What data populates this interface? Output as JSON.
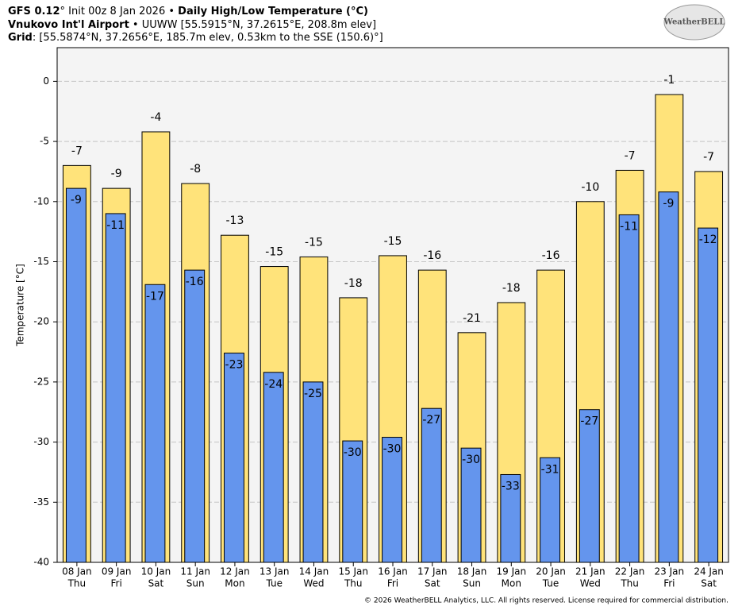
{
  "chart_data": {
    "type": "bar",
    "title_lines": [
      [
        {
          "text": "GFS 0.12",
          "bold": true
        },
        {
          "text": "° Init 00z 8 Jan 2026 • "
        },
        {
          "text": "Daily High/Low Temperature (°C)",
          "bold": true
        }
      ],
      [
        {
          "text": "Vnukovo Int'l Airport",
          "bold": true
        },
        {
          "text": " • UUWW [55.5915°N, 37.2615°E, 208.8m elev]"
        }
      ],
      [
        {
          "text": "Grid",
          "bold": true
        },
        {
          "text": ": [55.5874°N, 37.2656°E, 185.7m elev, 0.53km to the SSE (150.6)°]"
        }
      ]
    ],
    "logo": "WeatherBELL",
    "ylabel": "Temperature [°C]",
    "footer": "© 2026 WeatherBELL Analytics, LLC. All rights reserved. License required for commercial distribution.",
    "categories": [
      "08 Jan",
      "09 Jan",
      "10 Jan",
      "11 Jan",
      "12 Jan",
      "13 Jan",
      "14 Jan",
      "15 Jan",
      "16 Jan",
      "17 Jan",
      "18 Jan",
      "19 Jan",
      "20 Jan",
      "21 Jan",
      "22 Jan",
      "23 Jan",
      "24 Jan"
    ],
    "weekdays": [
      "Thu",
      "Fri",
      "Sat",
      "Sun",
      "Mon",
      "Tue",
      "Wed",
      "Thu",
      "Fri",
      "Sat",
      "Sun",
      "Mon",
      "Tue",
      "Wed",
      "Thu",
      "Fri",
      "Sat"
    ],
    "series": [
      {
        "name": "High",
        "color": "#ffe37a",
        "values": [
          -7.0,
          -8.9,
          -4.2,
          -8.5,
          -12.8,
          -15.4,
          -14.6,
          -18.0,
          -14.5,
          -15.7,
          -20.9,
          -18.4,
          -15.7,
          -10.0,
          -7.4,
          -1.1,
          -7.5
        ],
        "value_labels": [
          "-7",
          "-9",
          "-4",
          "-8",
          "-13",
          "-15",
          "-15",
          "-18",
          "-15",
          "-16",
          "-21",
          "-18",
          "-16",
          "-10",
          "-7",
          "-1",
          "-7"
        ]
      },
      {
        "name": "Low",
        "color": "#6495ed",
        "values": [
          -8.9,
          -11.0,
          -16.9,
          -15.7,
          -22.6,
          -24.2,
          -25.0,
          -29.9,
          -29.6,
          -27.2,
          -30.5,
          -32.7,
          -31.3,
          -27.3,
          -11.1,
          -9.2,
          -12.2
        ],
        "value_labels": [
          "-9",
          "-11",
          "-17",
          "-16",
          "-23",
          "-24",
          "-25",
          "-30",
          "-30",
          "-27",
          "-30",
          "-33",
          "-31",
          "-27",
          "-11",
          "-9",
          "-12"
        ]
      }
    ],
    "ylim": [
      -40,
      2.8
    ],
    "yticks": [
      0,
      -5,
      -10,
      -15,
      -20,
      -25,
      -30,
      -35,
      -40
    ],
    "grid": true
  }
}
